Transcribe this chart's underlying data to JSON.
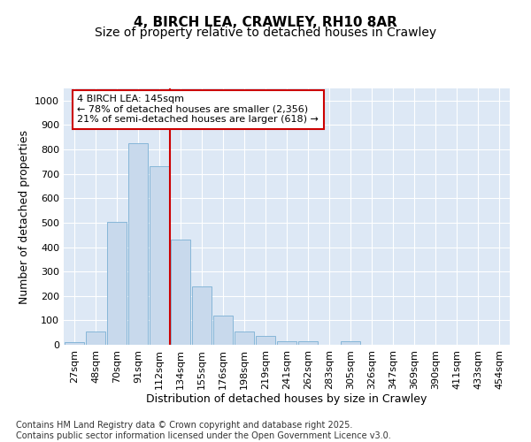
{
  "title": "4, BIRCH LEA, CRAWLEY, RH10 8AR",
  "subtitle": "Size of property relative to detached houses in Crawley",
  "xlabel": "Distribution of detached houses by size in Crawley",
  "ylabel": "Number of detached properties",
  "bin_labels": [
    "27sqm",
    "48sqm",
    "70sqm",
    "91sqm",
    "112sqm",
    "134sqm",
    "155sqm",
    "176sqm",
    "198sqm",
    "219sqm",
    "241sqm",
    "262sqm",
    "283sqm",
    "305sqm",
    "326sqm",
    "347sqm",
    "369sqm",
    "390sqm",
    "411sqm",
    "433sqm",
    "454sqm"
  ],
  "bar_values": [
    10,
    55,
    505,
    825,
    730,
    430,
    240,
    120,
    55,
    35,
    15,
    15,
    0,
    15,
    0,
    0,
    0,
    0,
    0,
    0,
    0
  ],
  "bar_color": "#c8d9ec",
  "bar_edge_color": "#7aafd4",
  "property_line_x": 4.5,
  "property_line_color": "#cc0000",
  "annotation_line1": "4 BIRCH LEA: 145sqm",
  "annotation_line2": "← 78% of detached houses are smaller (2,356)",
  "annotation_line3": "21% of semi-detached houses are larger (618) →",
  "annotation_box_facecolor": "#ffffff",
  "annotation_box_edgecolor": "#cc0000",
  "ylim": [
    0,
    1050
  ],
  "yticks": [
    0,
    100,
    200,
    300,
    400,
    500,
    600,
    700,
    800,
    900,
    1000
  ],
  "axes_facecolor": "#dde8f5",
  "grid_color": "#ffffff",
  "footer_text": "Contains HM Land Registry data © Crown copyright and database right 2025.\nContains public sector information licensed under the Open Government Licence v3.0.",
  "title_fontsize": 11,
  "subtitle_fontsize": 10,
  "axis_label_fontsize": 9,
  "tick_fontsize": 8,
  "annotation_fontsize": 8,
  "footer_fontsize": 7
}
